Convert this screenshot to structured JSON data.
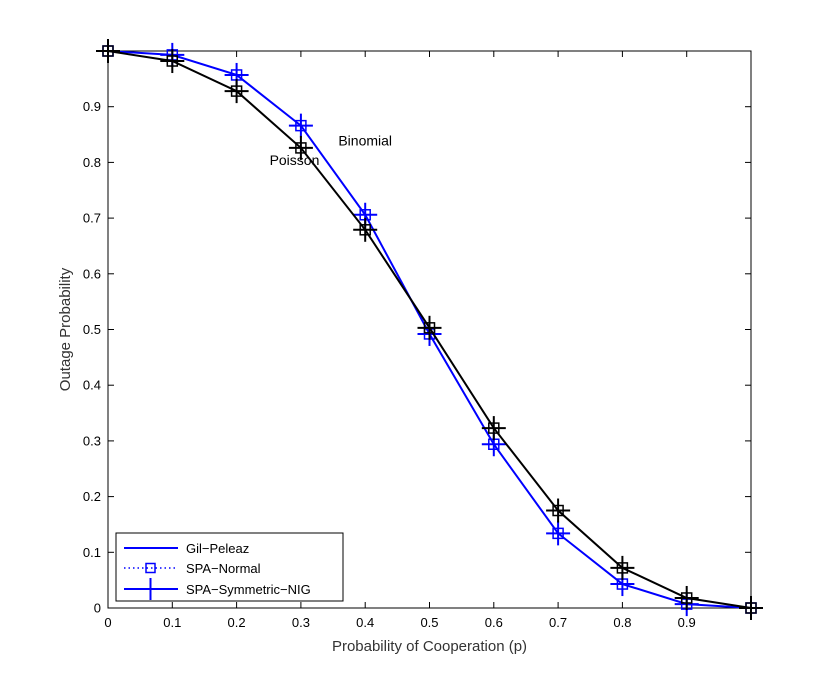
{
  "chart_data": {
    "type": "line",
    "xlabel": "Probability of Cooperation (p)",
    "ylabel": "Outage Probability",
    "xlim": [
      0,
      1
    ],
    "ylim": [
      0,
      1
    ],
    "x": [
      0,
      0.1,
      0.2,
      0.3,
      0.4,
      0.5,
      0.6,
      0.7,
      0.8,
      0.9,
      1.0
    ],
    "x_tick_labels": [
      "0",
      "0.1",
      "0.2",
      "0.3",
      "0.4",
      "0.5",
      "0.6",
      "0.7",
      "0.8",
      "0.9"
    ],
    "y_ticks": [
      0,
      0.1,
      0.2,
      0.3,
      0.4,
      0.5,
      0.6,
      0.7,
      0.8,
      0.9
    ],
    "y_tick_labels": [
      "0",
      "0.1",
      "0.2",
      "0.3",
      "0.4",
      "0.5",
      "0.6",
      "0.7",
      "0.8",
      "0.9"
    ],
    "grid": false,
    "legend_position": "bottom-left",
    "legend": [
      {
        "label": "Gil−Peleaz",
        "style": "solid",
        "marker": "none"
      },
      {
        "label": "SPA−Normal",
        "style": "dotted",
        "marker": "square"
      },
      {
        "label": "SPA−Symmetric−NIG",
        "style": "solid",
        "marker": "plus"
      }
    ],
    "series": [
      {
        "group": "Binomial",
        "color": "#0000ff",
        "gil_peleaz": [
          1.0,
          0.993,
          0.957,
          0.866,
          0.706,
          0.492,
          0.294,
          0.134,
          0.043,
          0.007,
          0.0
        ],
        "spa_normal": [
          1.0,
          0.993,
          0.957,
          0.866,
          0.706,
          0.492,
          0.294,
          0.134,
          0.043,
          0.007,
          0.0
        ],
        "spa_symmetric_nig": [
          1.0,
          0.993,
          0.957,
          0.866,
          0.706,
          0.492,
          0.294,
          0.134,
          0.043,
          0.007,
          0.0
        ]
      },
      {
        "group": "Poisson",
        "color": "#000000",
        "gil_peleaz": [
          1.0,
          0.982,
          0.928,
          0.826,
          0.679,
          0.503,
          0.323,
          0.175,
          0.072,
          0.018,
          0.0
        ],
        "spa_normal": [
          1.0,
          0.982,
          0.928,
          0.826,
          0.679,
          0.503,
          0.323,
          0.175,
          0.072,
          0.018,
          0.0
        ],
        "spa_symmetric_nig": [
          1.0,
          0.982,
          0.928,
          0.826,
          0.679,
          0.503,
          0.323,
          0.175,
          0.072,
          0.018,
          0.0
        ]
      }
    ],
    "annotations": [
      {
        "text": "Binomial",
        "x": 0.4,
        "y": 0.83
      },
      {
        "text": "Poisson",
        "x": 0.29,
        "y": 0.795
      }
    ]
  }
}
